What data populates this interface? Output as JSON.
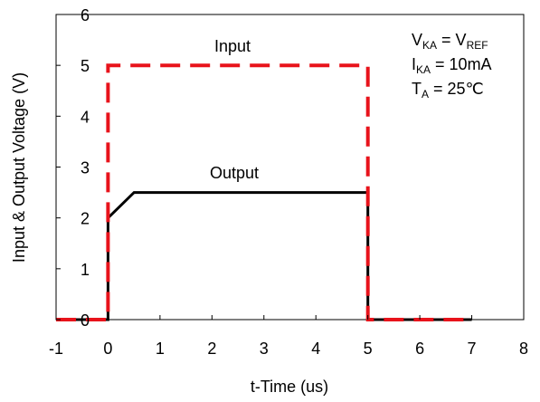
{
  "chart_data": {
    "type": "line",
    "title": "",
    "xlabel": "t-Time (us)",
    "ylabel": "Input & Output Voltage (V)",
    "xlim": [
      -1,
      8
    ],
    "ylim": [
      0,
      6
    ],
    "x_ticks": [
      "-1",
      "0",
      "1",
      "2",
      "3",
      "4",
      "5",
      "6",
      "7",
      "8"
    ],
    "y_ticks": [
      "0",
      "1",
      "2",
      "3",
      "4",
      "5",
      "6"
    ],
    "grid": false,
    "series": [
      {
        "name": "Input",
        "color": "#e8131b",
        "style": "dashed",
        "x": [
          -1,
          0,
          0,
          5,
          5,
          7
        ],
        "y": [
          0,
          0,
          5,
          5,
          0,
          0
        ]
      },
      {
        "name": "Output",
        "color": "#000000",
        "style": "solid",
        "x": [
          -1,
          0,
          0,
          0.5,
          5,
          5,
          7
        ],
        "y": [
          0,
          0,
          2,
          2.5,
          2.5,
          0,
          0
        ]
      }
    ],
    "annotations": {
      "input_label": "Input",
      "output_label": "Output",
      "cond1_main": "V",
      "cond1_sub": "KA",
      "cond1_mid": " = V",
      "cond1_sub2": "REF",
      "cond2_main": "I",
      "cond2_sub": "KA",
      "cond2_rest": " = 10mA",
      "cond3_main": "T",
      "cond3_sub": "A",
      "cond3_rest": " = 25℃"
    }
  }
}
